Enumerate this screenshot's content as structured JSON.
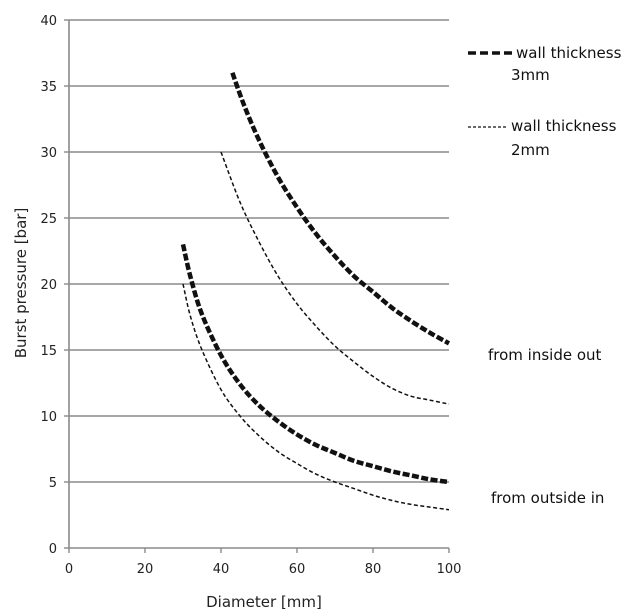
{
  "chart_data": {
    "type": "line",
    "xlabel": "Diameter [mm]",
    "ylabel": "Burst pressure [bar]",
    "xlim": [
      0,
      100
    ],
    "ylim": [
      0,
      40
    ],
    "xticks": [
      0,
      20,
      40,
      60,
      80,
      100
    ],
    "yticks": [
      0,
      5,
      10,
      15,
      20,
      25,
      30,
      35,
      40
    ],
    "grid": "horizontal",
    "legend_position": "right",
    "series": [
      {
        "name": "wall thickness 3mm",
        "group": "from inside out",
        "style": "thick-dashed",
        "x": [
          43,
          46,
          50,
          55,
          60,
          65,
          70,
          75,
          80,
          85,
          90,
          95,
          100
        ],
        "y": [
          36,
          33.6,
          30.9,
          28.1,
          25.8,
          23.8,
          22.1,
          20.6,
          19.4,
          18.2,
          17.2,
          16.3,
          15.5
        ]
      },
      {
        "name": "wall thickness 2mm",
        "group": "from inside out",
        "style": "thin-dashed",
        "x": [
          40,
          45,
          50,
          55,
          60,
          65,
          70,
          75,
          80,
          85,
          90,
          95,
          100
        ],
        "y": [
          30,
          26.2,
          23.2,
          20.6,
          18.5,
          16.8,
          15.3,
          14.1,
          13.0,
          12.1,
          11.5,
          11.2,
          10.9
        ]
      },
      {
        "name": "wall thickness 3mm",
        "group": "from outside in",
        "style": "thick-dashed",
        "x": [
          30,
          32,
          35,
          40,
          45,
          50,
          55,
          60,
          65,
          70,
          75,
          80,
          85,
          90,
          95,
          100
        ],
        "y": [
          23,
          20.5,
          17.7,
          14.6,
          12.4,
          10.8,
          9.6,
          8.6,
          7.8,
          7.2,
          6.6,
          6.2,
          5.8,
          5.5,
          5.2,
          5.0
        ]
      },
      {
        "name": "wall thickness 2mm",
        "group": "from outside in",
        "style": "thin-dashed",
        "x": [
          30,
          32,
          35,
          40,
          45,
          50,
          55,
          60,
          65,
          70,
          75,
          80,
          85,
          90,
          95,
          100
        ],
        "y": [
          20,
          17.5,
          15.0,
          12.0,
          10.0,
          8.5,
          7.3,
          6.4,
          5.6,
          5.0,
          4.5,
          4.0,
          3.6,
          3.3,
          3.1,
          2.9
        ]
      }
    ],
    "legend": [
      {
        "label_line1": "wall thickness",
        "label_line2": "3mm",
        "style": "thick-dashed"
      },
      {
        "label_line1": "wall thickness",
        "label_line2": "2mm",
        "style": "thin-dashed"
      }
    ],
    "annotations": {
      "inside_out": "from inside out",
      "outside_in": "from outside in"
    },
    "colors": {
      "line": "#111111",
      "grid": "#8a8a8a",
      "axis": "#8a8a8a"
    }
  }
}
